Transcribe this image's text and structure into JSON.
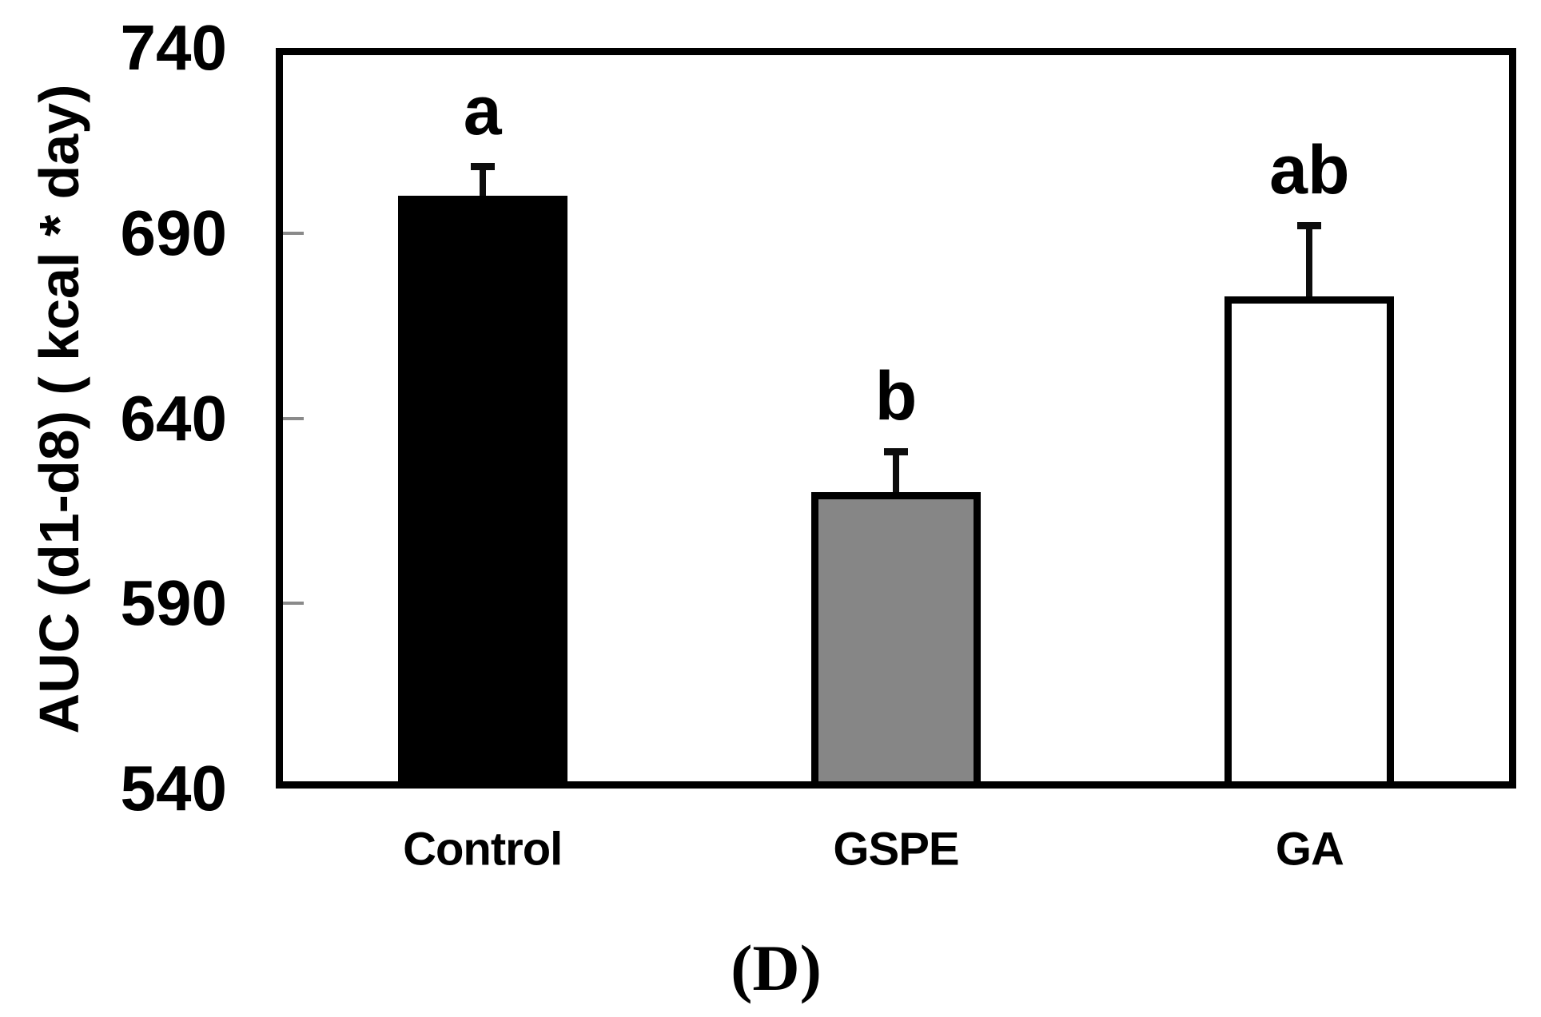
{
  "figure": {
    "panel_label": "(D)",
    "background_color": "#ffffff"
  },
  "chart_data": {
    "type": "bar",
    "title": "",
    "ylabel": "AUC (d1-d8) ( kcal * day)",
    "xlabel": "",
    "categories": [
      "Control",
      "GSPE",
      "GA"
    ],
    "values": [
      700,
      620,
      673
    ],
    "errors_plus": [
      8,
      11,
      19
    ],
    "significance_labels": [
      "a",
      "b",
      "ab"
    ],
    "bar_fill_colors": [
      "#000000",
      "#868686",
      "#ffffff"
    ],
    "bar_border_color": "#000000",
    "error_bar_color": "#0d0d0d",
    "ylim": [
      540,
      740
    ],
    "yticks": [
      740,
      690,
      640,
      590,
      540
    ],
    "ytick_mark_color": "#8a8a8a",
    "frame_color": "#000000",
    "grid": false,
    "legend": "none"
  }
}
